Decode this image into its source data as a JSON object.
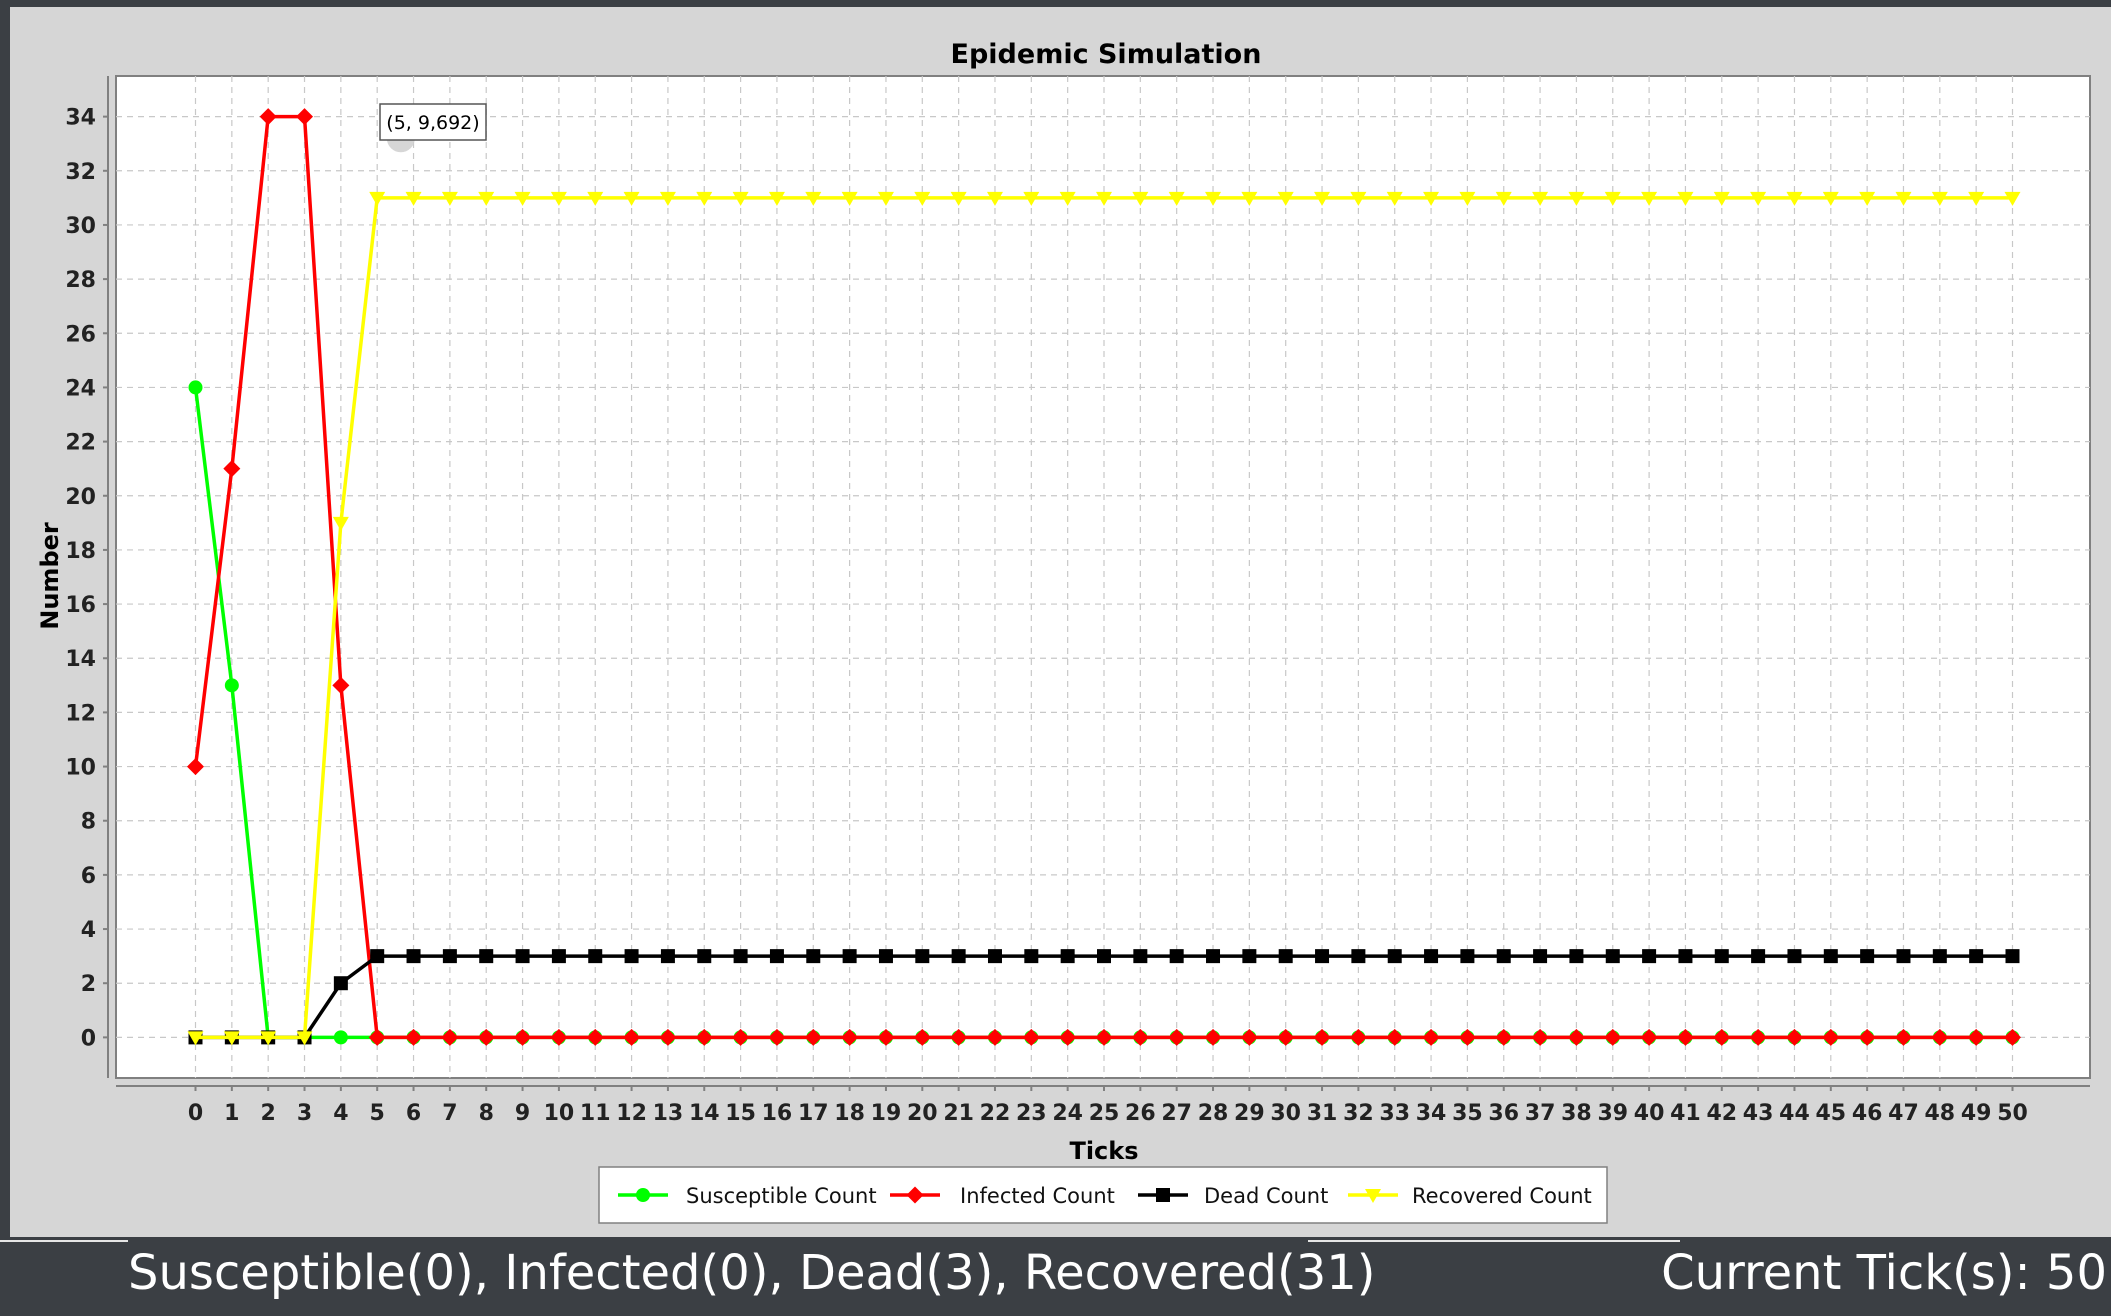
{
  "chart_data": {
    "type": "line",
    "title": "Epidemic Simulation",
    "xlabel": "Ticks",
    "ylabel": "Number",
    "x": [
      0,
      1,
      2,
      3,
      4,
      5,
      6,
      7,
      8,
      9,
      10,
      11,
      12,
      13,
      14,
      15,
      16,
      17,
      18,
      19,
      20,
      21,
      22,
      23,
      24,
      25,
      26,
      27,
      28,
      29,
      30,
      31,
      32,
      33,
      34,
      35,
      36,
      37,
      38,
      39,
      40,
      41,
      42,
      43,
      44,
      45,
      46,
      47,
      48,
      49,
      50
    ],
    "ylim": [
      -1.5,
      35.5
    ],
    "yticks": [
      0,
      2,
      4,
      6,
      8,
      10,
      12,
      14,
      16,
      18,
      20,
      22,
      24,
      26,
      28,
      30,
      32,
      34
    ],
    "grid": true,
    "legend_position": "bottom",
    "series": [
      {
        "name": "Susceptible Count",
        "color": "#00ff00",
        "marker": "circle",
        "values": [
          24,
          13,
          0,
          0,
          0,
          0,
          0,
          0,
          0,
          0,
          0,
          0,
          0,
          0,
          0,
          0,
          0,
          0,
          0,
          0,
          0,
          0,
          0,
          0,
          0,
          0,
          0,
          0,
          0,
          0,
          0,
          0,
          0,
          0,
          0,
          0,
          0,
          0,
          0,
          0,
          0,
          0,
          0,
          0,
          0,
          0,
          0,
          0,
          0,
          0,
          0
        ]
      },
      {
        "name": "Infected Count",
        "color": "#ff0000",
        "marker": "diamond",
        "values": [
          10,
          21,
          34,
          34,
          13,
          0,
          0,
          0,
          0,
          0,
          0,
          0,
          0,
          0,
          0,
          0,
          0,
          0,
          0,
          0,
          0,
          0,
          0,
          0,
          0,
          0,
          0,
          0,
          0,
          0,
          0,
          0,
          0,
          0,
          0,
          0,
          0,
          0,
          0,
          0,
          0,
          0,
          0,
          0,
          0,
          0,
          0,
          0,
          0,
          0,
          0
        ]
      },
      {
        "name": "Dead Count",
        "color": "#000000",
        "marker": "square",
        "values": [
          0,
          0,
          0,
          0,
          2,
          3,
          3,
          3,
          3,
          3,
          3,
          3,
          3,
          3,
          3,
          3,
          3,
          3,
          3,
          3,
          3,
          3,
          3,
          3,
          3,
          3,
          3,
          3,
          3,
          3,
          3,
          3,
          3,
          3,
          3,
          3,
          3,
          3,
          3,
          3,
          3,
          3,
          3,
          3,
          3,
          3,
          3,
          3,
          3,
          3,
          3
        ]
      },
      {
        "name": "Recovered Count",
        "color": "#ffff00",
        "marker": "triangle-down",
        "values": [
          0,
          0,
          0,
          0,
          19,
          31,
          31,
          31,
          31,
          31,
          31,
          31,
          31,
          31,
          31,
          31,
          31,
          31,
          31,
          31,
          31,
          31,
          31,
          31,
          31,
          31,
          31,
          31,
          31,
          31,
          31,
          31,
          31,
          31,
          31,
          31,
          31,
          31,
          31,
          31,
          31,
          31,
          31,
          31,
          31,
          31,
          31,
          31,
          31,
          31,
          31
        ]
      }
    ],
    "tooltip": {
      "text": "(5, 9,692)",
      "x": 5.65,
      "y": 33.2
    }
  },
  "status": {
    "counts": "Susceptible(0), Infected(0), Dead(3), Recovered(31)",
    "tick": "Current Tick(s): 50"
  },
  "colors": {
    "panel_background": "#d6d6d6",
    "plot_background": "#ffffff",
    "status_background": "#3b3f44"
  }
}
